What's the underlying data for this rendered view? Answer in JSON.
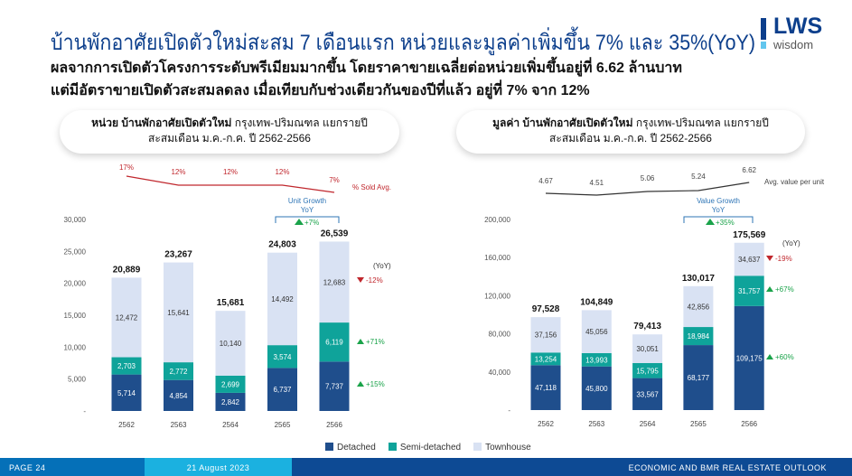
{
  "header": {
    "title": "บ้านพักอาศัยเปิดตัวใหม่สะสม 7 เดือนแรก หน่วยและมูลค่าเพิ่มขึ้น 7% และ 35%(YoY)",
    "subtitle_line1": "ผลจากการเปิดตัวโครงการระดับพรีเมียมมากขึ้น โดยราคาขายเฉลี่ยต่อหน่วยเพิ่มขึ้นอยู่ที่ 6.62 ล้านบาท",
    "subtitle_line2": "แต่มีอัตราขายเปิดตัวสะสมลดลง เมื่อเทียบกับช่วงเดียวกันของปีที่แล้ว อยู่ที่ 7% จาก 12%",
    "logo_top": "LWS",
    "logo_bottom": "wisdom"
  },
  "legend": [
    "Detached",
    "Semi-detached",
    "Townhouse"
  ],
  "colors": {
    "detached": "#1f4e8c",
    "semi": "#0fa39a",
    "townhouse": "#d9e2f3",
    "line_sold": "#c0272d",
    "line_avg": "#333333",
    "growth_up": "#1aa34a",
    "growth_down": "#c0272d",
    "bracket": "#2e75b6"
  },
  "footer": {
    "page": "PAGE 24",
    "date": "21 August 2023",
    "report": "ECONOMIC AND BMR REAL ESTATE OUTLOOK"
  },
  "chart_data": [
    {
      "type": "bar",
      "stacked": true,
      "title_bold": "หน่วย บ้านพักอาศัยเปิดตัวใหม่",
      "title_rest": " กรุงเทพ-ปริมณฑล แยกรายปี",
      "title_line2": "สะสมเดือน ม.ค.-ก.ค. ปี 2562-2566",
      "categories": [
        "2562",
        "2563",
        "2564",
        "2565",
        "2566"
      ],
      "series": [
        {
          "name": "Detached",
          "values": [
            5714,
            4854,
            2842,
            6737,
            7737
          ],
          "labels": [
            "5,714",
            "4,854",
            "2,842",
            "6,737",
            "7,737"
          ]
        },
        {
          "name": "Semi-detached",
          "values": [
            2703,
            2772,
            2699,
            3574,
            6119
          ],
          "labels": [
            "2,703",
            "2,772",
            "2,699",
            "3,574",
            "6,119"
          ]
        },
        {
          "name": "Townhouse",
          "values": [
            12472,
            15641,
            10140,
            14492,
            12683
          ],
          "labels": [
            "12,472",
            "15,641",
            "10,140",
            "14,492",
            "12,683"
          ]
        }
      ],
      "totals": [
        "20,889",
        "23,267",
        "15,681",
        "24,803",
        "26,539"
      ],
      "ylim": [
        0,
        30000
      ],
      "yticks": [
        {
          "v": 0,
          "l": "-"
        },
        {
          "v": 5000,
          "l": "5,000"
        },
        {
          "v": 10000,
          "l": "10,000"
        },
        {
          "v": 15000,
          "l": "15,000"
        },
        {
          "v": 20000,
          "l": "20,000"
        },
        {
          "v": 25000,
          "l": "25,000"
        },
        {
          "v": 30000,
          "l": "30,000"
        }
      ],
      "line": {
        "name": "% Sold Avg.",
        "values": [
          17,
          12,
          12,
          12,
          7
        ],
        "labels": [
          "17%",
          "12%",
          "12%",
          "12%",
          "7%"
        ]
      },
      "growth_title": "Unit Growth YoY",
      "growth_title1": "Unit Growth",
      "growth_title2": "YoY",
      "growth_total": "+7%",
      "yoy_label": "(YoY)",
      "yoy": [
        {
          "series": "Townhouse",
          "text": "-12%",
          "dir": "down"
        },
        {
          "series": "Semi-detached",
          "text": "+71%",
          "dir": "up"
        },
        {
          "series": "Detached",
          "text": "+15%",
          "dir": "up"
        }
      ]
    },
    {
      "type": "bar",
      "stacked": true,
      "title_bold": "มูลค่า บ้านพักอาศัยเปิดตัวใหม่",
      "title_rest": " กรุงเทพ-ปริมณฑล แยกรายปี",
      "title_line2": "สะสมเดือน ม.ค.-ก.ค. ปี 2562-2566",
      "categories": [
        "2562",
        "2563",
        "2564",
        "2565",
        "2566"
      ],
      "series": [
        {
          "name": "Detached",
          "values": [
            47118,
            45800,
            33567,
            68177,
            109175
          ],
          "labels": [
            "47,118",
            "45,800",
            "33,567",
            "68,177",
            "109,175"
          ]
        },
        {
          "name": "Semi-detached",
          "values": [
            13254,
            13993,
            15795,
            18984,
            31757
          ],
          "labels": [
            "13,254",
            "13,993",
            "15,795",
            "18,984",
            "31,757"
          ]
        },
        {
          "name": "Townhouse",
          "values": [
            37156,
            45056,
            30051,
            42856,
            34637
          ],
          "labels": [
            "37,156",
            "45,056",
            "30,051",
            "42,856",
            "34,637"
          ]
        }
      ],
      "totals": [
        "97,528",
        "104,849",
        "79,413",
        "130,017",
        "175,569"
      ],
      "ylim": [
        0,
        200000
      ],
      "yticks": [
        {
          "v": 0,
          "l": "-"
        },
        {
          "v": 40000,
          "l": "40,000"
        },
        {
          "v": 80000,
          "l": "80,000"
        },
        {
          "v": 120000,
          "l": "120,000"
        },
        {
          "v": 160000,
          "l": "160,000"
        },
        {
          "v": 200000,
          "l": "200,000"
        }
      ],
      "line": {
        "name": "Avg. value per unit",
        "values": [
          4.67,
          4.51,
          5.06,
          5.24,
          6.62
        ],
        "labels": [
          "4.67",
          "4.51",
          "5.06",
          "5.24",
          "6.62"
        ]
      },
      "growth_title1": "Value Growth",
      "growth_title2": "YoY",
      "growth_total": "+35%",
      "yoy_label": "(YoY)",
      "yoy": [
        {
          "series": "Townhouse",
          "text": "-19%",
          "dir": "down"
        },
        {
          "series": "Semi-detached",
          "text": "+67%",
          "dir": "up"
        },
        {
          "series": "Detached",
          "text": "+60%",
          "dir": "up"
        }
      ]
    }
  ]
}
